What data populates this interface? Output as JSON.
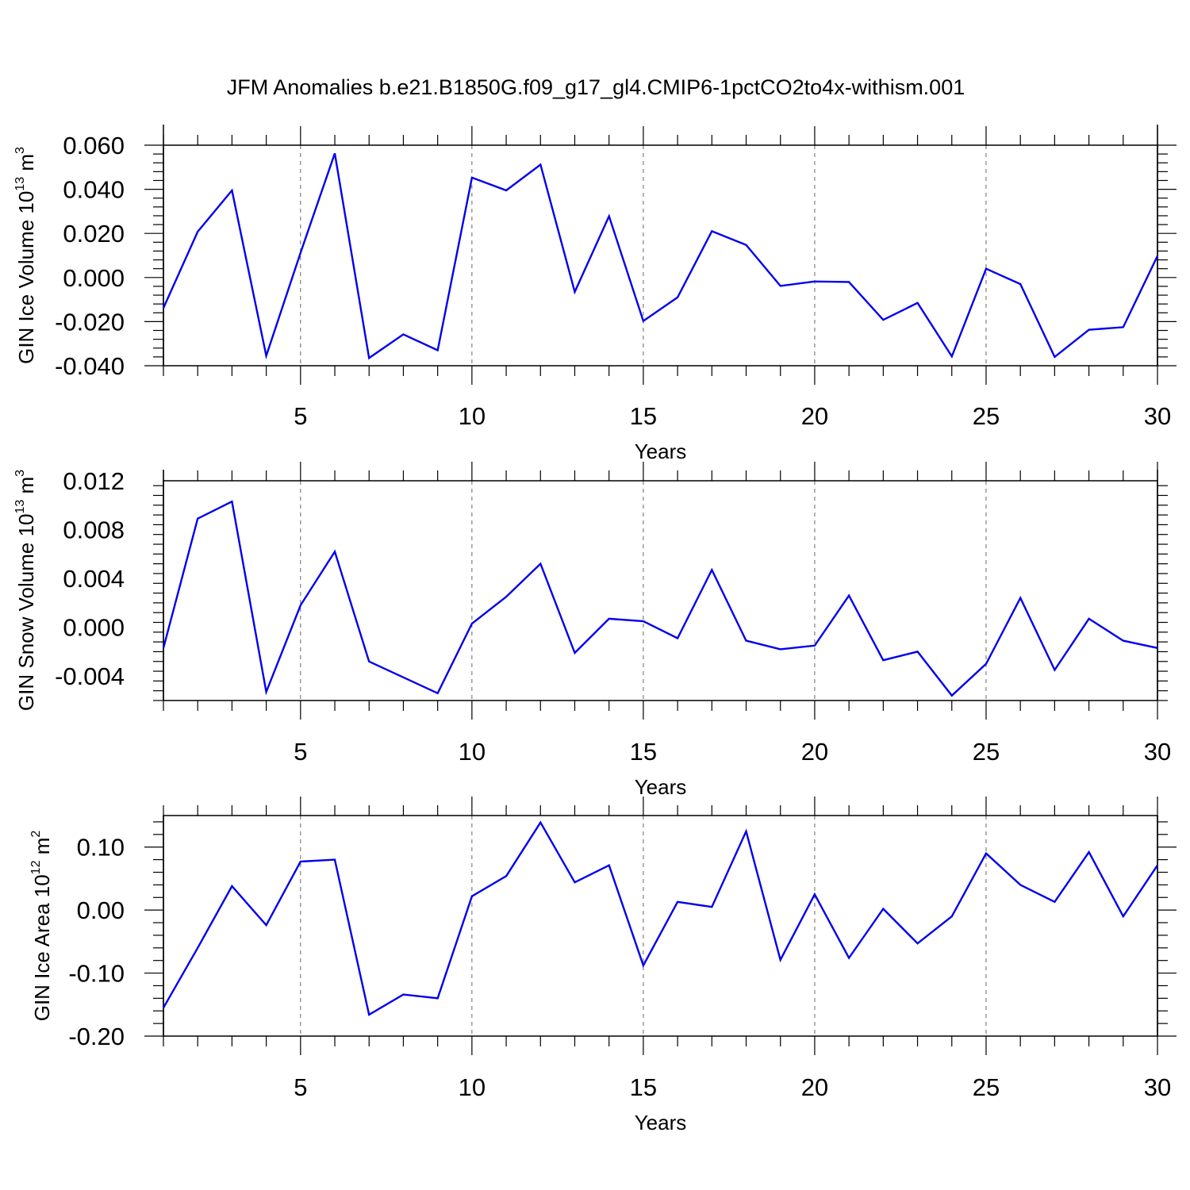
{
  "title": "JFM Anomalies b.e21.B1850G.f09_g17_gl4.CMIP6-1pctCO2to4x-withism.001",
  "colors": {
    "series": "#0000ee",
    "frame": "#000000",
    "grid": "#666666"
  },
  "chart_data": [
    {
      "type": "line",
      "xlabel": "Years",
      "ylabel": {
        "base": "GIN Ice Volume 10",
        "exp": "13",
        "unit": " m",
        "unit_exp": "3"
      },
      "xlim": [
        1,
        30
      ],
      "ylim": [
        -0.04,
        0.06
      ],
      "xticks": [
        5,
        10,
        15,
        20,
        25,
        30
      ],
      "yticks": [
        -0.04,
        -0.02,
        0.0,
        0.02,
        0.04,
        0.06
      ],
      "ytick_labels": [
        "-0.040",
        "-0.020",
        "0.000",
        "0.020",
        "0.040",
        "0.060"
      ],
      "grid": "vertical dashed at x ticks",
      "series": [
        {
          "x": [
            1,
            2,
            3,
            4,
            5,
            6,
            7,
            8,
            9,
            10,
            11,
            12,
            13,
            14,
            15,
            16,
            17,
            18,
            19,
            20,
            21,
            22,
            23,
            24,
            25,
            26,
            27,
            28,
            29,
            30
          ],
          "values": [
            -0.0138,
            0.0208,
            0.0395,
            -0.0355,
            0.0112,
            0.0563,
            -0.0365,
            -0.0258,
            -0.033,
            0.0453,
            0.0395,
            0.0512,
            -0.0065,
            0.0278,
            -0.0197,
            -0.009,
            0.021,
            0.0148,
            -0.0038,
            -0.0018,
            -0.002,
            -0.0192,
            -0.0115,
            -0.0358,
            0.004,
            -0.003,
            -0.036,
            -0.0237,
            -0.0225,
            0.0098
          ]
        }
      ]
    },
    {
      "type": "line",
      "xlabel": "Years",
      "ylabel": {
        "base": "GIN Snow Volume 10",
        "exp": "13",
        "unit": " m",
        "unit_exp": "3"
      },
      "xlim": [
        1,
        30
      ],
      "ylim": [
        -0.006,
        0.012
      ],
      "xticks": [
        5,
        10,
        15,
        20,
        25,
        30
      ],
      "yticks": [
        -0.004,
        0.0,
        0.004,
        0.008,
        0.012
      ],
      "ytick_labels": [
        "-0.004",
        "0.000",
        "0.004",
        "0.008",
        "0.012"
      ],
      "grid": "vertical dashed at x ticks",
      "series": [
        {
          "x": [
            1,
            2,
            3,
            4,
            5,
            6,
            7,
            8,
            9,
            10,
            11,
            12,
            13,
            14,
            15,
            16,
            17,
            18,
            19,
            20,
            21,
            22,
            23,
            24,
            25,
            26,
            27,
            28,
            29,
            30
          ],
          "values": [
            -0.0017,
            0.0089,
            0.0103,
            -0.0053,
            0.0018,
            0.0062,
            -0.0028,
            -0.0041,
            -0.0054,
            0.0003,
            0.0025,
            0.0052,
            -0.0021,
            0.0007,
            0.0005,
            -0.0009,
            0.0047,
            -0.0011,
            -0.0018,
            -0.0015,
            0.0026,
            -0.0027,
            -0.002,
            -0.0056,
            -0.003,
            0.0024,
            -0.0035,
            0.0007,
            -0.0011,
            -0.0017
          ]
        }
      ]
    },
    {
      "type": "line",
      "xlabel": "Years",
      "ylabel": {
        "base": "GIN Ice Area 10",
        "exp": "12",
        "unit": " m",
        "unit_exp": "2"
      },
      "xlim": [
        1,
        30
      ],
      "ylim": [
        -0.2,
        0.15
      ],
      "xticks": [
        5,
        10,
        15,
        20,
        25,
        30
      ],
      "yticks": [
        -0.2,
        -0.1,
        0.0,
        0.1
      ],
      "ytick_labels": [
        "-0.20",
        "-0.10",
        "0.00",
        "0.10"
      ],
      "grid": "vertical dashed at x ticks",
      "series": [
        {
          "x": [
            1,
            2,
            3,
            4,
            5,
            6,
            7,
            8,
            9,
            10,
            11,
            12,
            13,
            14,
            15,
            16,
            17,
            18,
            19,
            20,
            21,
            22,
            23,
            24,
            25,
            26,
            27,
            28,
            29,
            30
          ],
          "values": [
            -0.155,
            -0.06,
            0.038,
            -0.024,
            0.077,
            0.08,
            -0.166,
            -0.134,
            -0.14,
            0.022,
            0.054,
            0.139,
            0.044,
            0.071,
            -0.088,
            0.013,
            0.005,
            0.125,
            -0.079,
            0.025,
            -0.076,
            0.002,
            -0.053,
            -0.01,
            0.09,
            0.04,
            0.013,
            0.092,
            -0.01,
            0.071
          ]
        }
      ]
    }
  ]
}
